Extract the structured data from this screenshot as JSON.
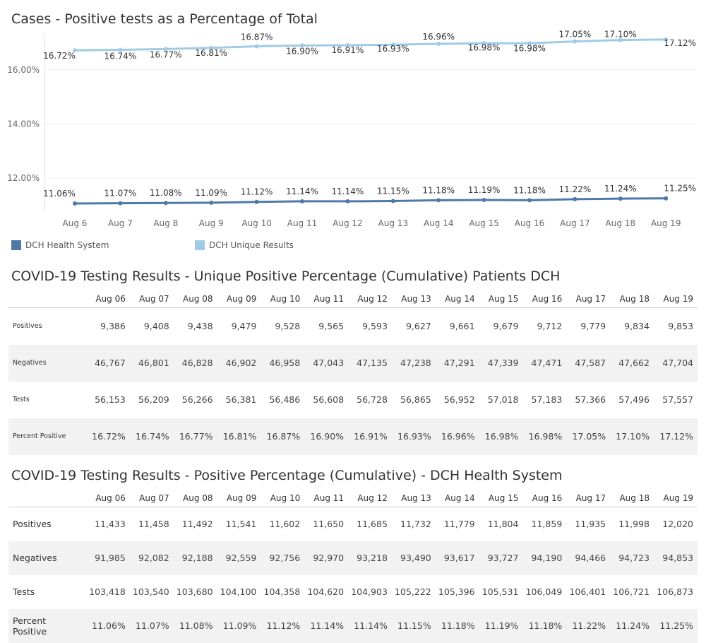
{
  "chart_data": {
    "type": "line",
    "title": "Cases - Positive tests as a Percentage of Total",
    "categories": [
      "Aug 6",
      "Aug 7",
      "Aug 8",
      "Aug 9",
      "Aug 10",
      "Aug 11",
      "Aug 12",
      "Aug 13",
      "Aug 14",
      "Aug 15",
      "Aug 16",
      "Aug 17",
      "Aug 18",
      "Aug 19"
    ],
    "y_ticks": [
      "12.00%",
      "14.00%",
      "16.00%"
    ],
    "y_tick_values": [
      12,
      14,
      16
    ],
    "ylim": [
      11.0,
      17.4
    ],
    "grid": true,
    "legend_position": "bottom",
    "series": [
      {
        "name": "DCH Health System",
        "color": "#4e79a7",
        "values": [
          11.06,
          11.07,
          11.08,
          11.09,
          11.12,
          11.14,
          11.14,
          11.15,
          11.18,
          11.19,
          11.18,
          11.22,
          11.24,
          11.25
        ],
        "labels": [
          "11.06%",
          "11.07%",
          "11.08%",
          "11.09%",
          "11.12%",
          "11.14%",
          "11.14%",
          "11.15%",
          "11.18%",
          "11.19%",
          "11.18%",
          "11.22%",
          "11.24%",
          "11.25%"
        ]
      },
      {
        "name": "DCH Unique Results",
        "color": "#a0cbe8",
        "values": [
          16.72,
          16.74,
          16.77,
          16.81,
          16.87,
          16.9,
          16.91,
          16.93,
          16.96,
          16.98,
          16.98,
          17.05,
          17.1,
          17.12
        ],
        "labels": [
          "16.72%",
          "16.74%",
          "16.77%",
          "16.81%",
          "16.87%",
          "16.90%",
          "16.91%",
          "16.93%",
          "16.96%",
          "16.98%",
          "16.98%",
          "17.05%",
          "17.10%",
          "17.12%"
        ]
      }
    ]
  },
  "table1": {
    "title": "COVID-19 Testing Results - Unique Positive Percentage (Cumulative) Patients DCH",
    "columns": [
      "Aug 06",
      "Aug 07",
      "Aug 08",
      "Aug 09",
      "Aug 10",
      "Aug 11",
      "Aug 12",
      "Aug 13",
      "Aug 14",
      "Aug 15",
      "Aug 16",
      "Aug 17",
      "Aug 18",
      "Aug 19"
    ],
    "rows": [
      {
        "label": "Positives",
        "values": [
          "9,386",
          "9,408",
          "9,438",
          "9,479",
          "9,528",
          "9,565",
          "9,593",
          "9,627",
          "9,661",
          "9,679",
          "9,712",
          "9,779",
          "9,834",
          "9,853"
        ]
      },
      {
        "label": "Negatives",
        "values": [
          "46,767",
          "46,801",
          "46,828",
          "46,902",
          "46,958",
          "47,043",
          "47,135",
          "47,238",
          "47,291",
          "47,339",
          "47,471",
          "47,587",
          "47,662",
          "47,704"
        ]
      },
      {
        "label": "Tests",
        "values": [
          "56,153",
          "56,209",
          "56,266",
          "56,381",
          "56,486",
          "56,608",
          "56,728",
          "56,865",
          "56,952",
          "57,018",
          "57,183",
          "57,366",
          "57,496",
          "57,557"
        ]
      },
      {
        "label": "Percent Positive",
        "values": [
          "16.72%",
          "16.74%",
          "16.77%",
          "16.81%",
          "16.87%",
          "16.90%",
          "16.91%",
          "16.93%",
          "16.96%",
          "16.98%",
          "16.98%",
          "17.05%",
          "17.10%",
          "17.12%"
        ]
      }
    ]
  },
  "table2": {
    "title": "COVID-19 Testing Results - Positive Percentage (Cumulative) - DCH Health System",
    "columns": [
      "Aug 06",
      "Aug 07",
      "Aug 08",
      "Aug 09",
      "Aug 10",
      "Aug 11",
      "Aug 12",
      "Aug 13",
      "Aug 14",
      "Aug 15",
      "Aug 16",
      "Aug 17",
      "Aug 18",
      "Aug 19"
    ],
    "rows": [
      {
        "label": "Positives",
        "values": [
          "11,433",
          "11,458",
          "11,492",
          "11,541",
          "11,602",
          "11,650",
          "11,685",
          "11,732",
          "11,779",
          "11,804",
          "11,859",
          "11,935",
          "11,998",
          "12,020"
        ]
      },
      {
        "label": "Negatives",
        "values": [
          "91,985",
          "92,082",
          "92,188",
          "92,559",
          "92,756",
          "92,970",
          "93,218",
          "93,490",
          "93,617",
          "93,727",
          "94,190",
          "94,466",
          "94,723",
          "94,853"
        ]
      },
      {
        "label": "Tests",
        "values": [
          "103,418",
          "103,540",
          "103,680",
          "104,100",
          "104,358",
          "104,620",
          "104,903",
          "105,222",
          "105,396",
          "105,531",
          "106,049",
          "106,401",
          "106,721",
          "106,873"
        ]
      },
      {
        "label": "Percent Positive",
        "values": [
          "11.06%",
          "11.07%",
          "11.08%",
          "11.09%",
          "11.12%",
          "11.14%",
          "11.14%",
          "11.15%",
          "11.18%",
          "11.19%",
          "11.18%",
          "11.22%",
          "11.24%",
          "11.25%"
        ]
      }
    ]
  }
}
